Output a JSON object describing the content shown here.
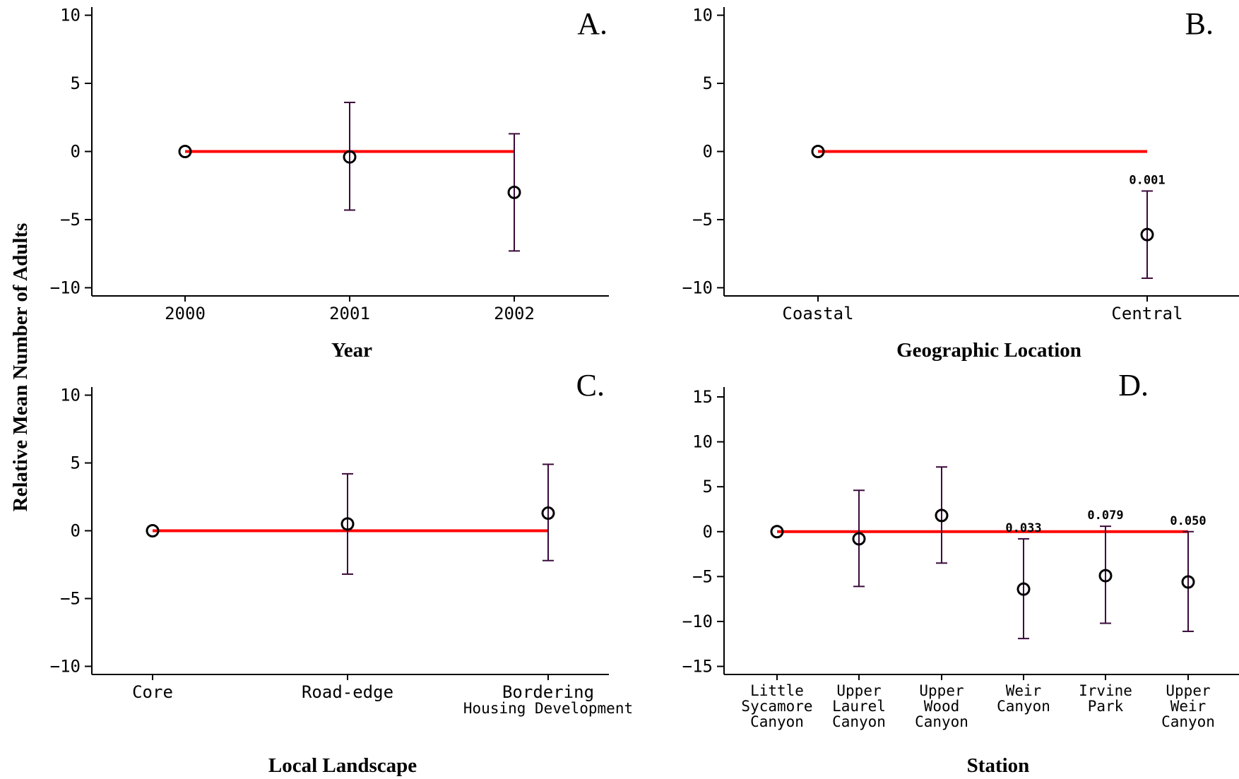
{
  "figure": {
    "ylabel": "Relative Mean Number of Adults"
  },
  "colors": {
    "reference_line": "#ff0000",
    "error_bar": "#3a0a3a",
    "marker": "#000000",
    "axis": "#000000"
  },
  "chart_data": [
    {
      "type": "scatter",
      "panel_label": "A.",
      "xlabel": "Year",
      "categories": [
        [
          "2000"
        ],
        [
          "2001"
        ],
        [
          "2002"
        ]
      ],
      "yticks": [
        10,
        5,
        0,
        -5,
        -10
      ],
      "ylim": [
        -10.6,
        10.6
      ],
      "points": [
        {
          "y": 0,
          "ci": null
        },
        {
          "y": -0.4,
          "ci": [
            -4.3,
            3.6
          ]
        },
        {
          "y": -3.0,
          "ci": [
            -7.3,
            1.3
          ]
        }
      ],
      "pvalues": [
        null,
        null,
        null
      ],
      "reference_line": {
        "y": 0,
        "from": 0,
        "to": 2
      }
    },
    {
      "type": "scatter",
      "panel_label": "B.",
      "xlabel": "Geographic Location",
      "categories": [
        [
          "Coastal"
        ],
        [
          "Central"
        ]
      ],
      "yticks": [
        10,
        5,
        0,
        -5,
        -10
      ],
      "ylim": [
        -10.6,
        10.6
      ],
      "points": [
        {
          "y": 0,
          "ci": null
        },
        {
          "y": -6.1,
          "ci": [
            -9.3,
            -2.9
          ]
        }
      ],
      "pvalues": [
        null,
        "0.001"
      ],
      "reference_line": {
        "y": 0,
        "from": 0,
        "to": 1
      }
    },
    {
      "type": "scatter",
      "panel_label": "C.",
      "xlabel": "Local Landscape",
      "categories": [
        [
          "Core"
        ],
        [
          "Road-edge"
        ],
        [
          "Bordering",
          "Housing Development"
        ]
      ],
      "yticks": [
        10,
        5,
        0,
        -5,
        -10
      ],
      "ylim": [
        -10.6,
        10.6
      ],
      "points": [
        {
          "y": 0,
          "ci": null
        },
        {
          "y": 0.5,
          "ci": [
            -3.2,
            4.2
          ]
        },
        {
          "y": 1.3,
          "ci": [
            -2.2,
            4.9
          ]
        }
      ],
      "pvalues": [
        null,
        null,
        null
      ],
      "reference_line": {
        "y": 0,
        "from": 0,
        "to": 2
      }
    },
    {
      "type": "scatter",
      "panel_label": "D.",
      "xlabel": "Station",
      "categories": [
        [
          "Little",
          "Sycamore",
          "Canyon"
        ],
        [
          "Upper",
          "Laurel",
          "Canyon"
        ],
        [
          "Upper",
          "Wood",
          "Canyon"
        ],
        [
          "Weir",
          "Canyon"
        ],
        [
          "Irvine",
          "Park"
        ],
        [
          "Upper",
          "Weir",
          "Canyon"
        ]
      ],
      "yticks": [
        15,
        10,
        5,
        0,
        -5,
        -10,
        -15
      ],
      "ylim": [
        -15.9,
        16.1
      ],
      "points": [
        {
          "y": 0,
          "ci": null
        },
        {
          "y": -0.8,
          "ci": [
            -6.1,
            4.6
          ]
        },
        {
          "y": 1.8,
          "ci": [
            -3.5,
            7.2
          ]
        },
        {
          "y": -6.4,
          "ci": [
            -11.9,
            -0.8
          ]
        },
        {
          "y": -4.9,
          "ci": [
            -10.2,
            0.6
          ]
        },
        {
          "y": -5.6,
          "ci": [
            -11.1,
            0
          ]
        }
      ],
      "pvalues": [
        null,
        null,
        null,
        "0.033",
        "0.079",
        "0.050"
      ],
      "reference_line": {
        "y": 0,
        "from": 0,
        "to": 5
      }
    }
  ]
}
